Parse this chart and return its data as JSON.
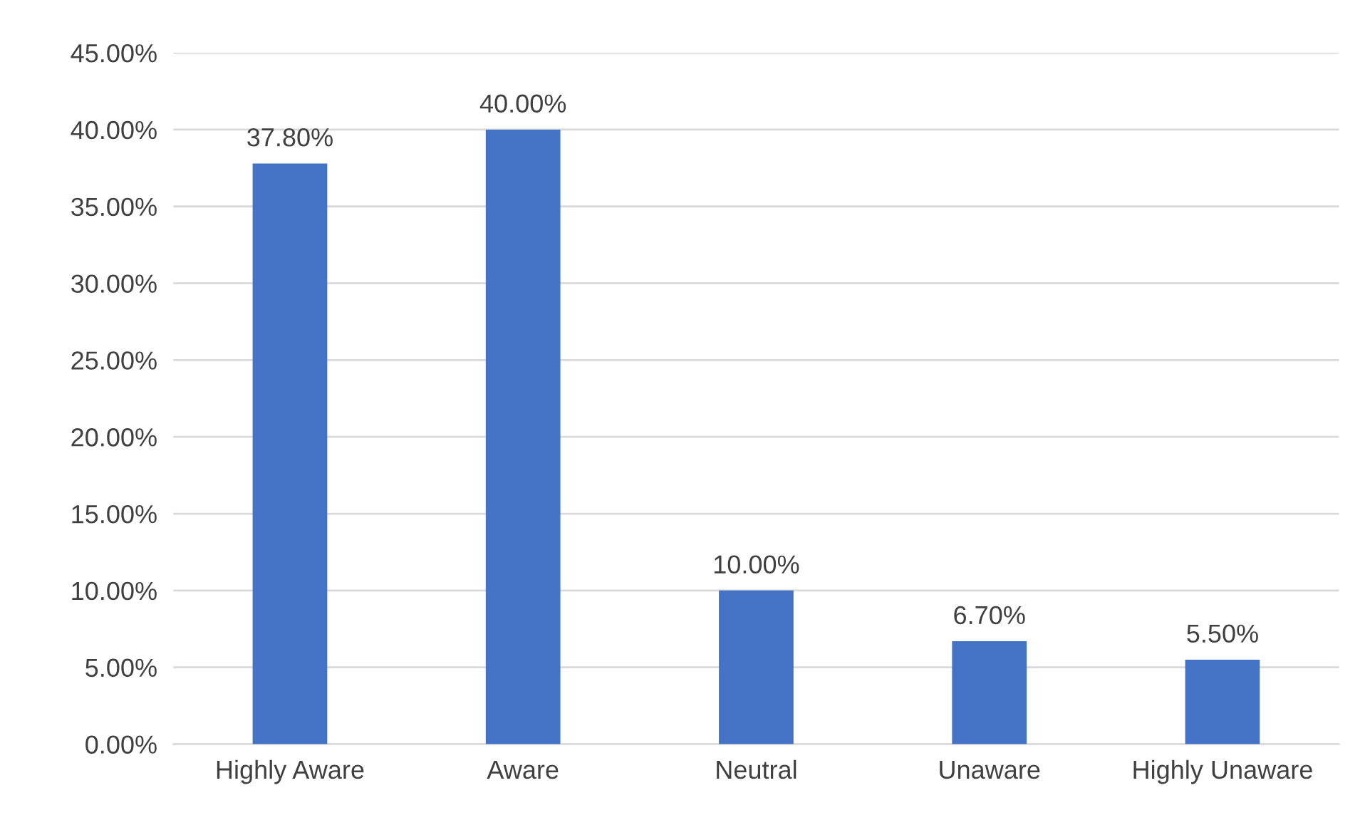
{
  "chart_data": {
    "type": "bar",
    "categories": [
      "Highly Aware",
      "Aware",
      "Neutral",
      "Unaware",
      "Highly Unaware"
    ],
    "values": [
      37.8,
      40.0,
      10.0,
      6.7,
      5.5
    ],
    "color": "#4472c4",
    "value_labels": [
      "37.80%",
      "40.00%",
      "10.00%",
      "6.70%",
      "5.50%"
    ],
    "ylim": [
      0,
      45
    ],
    "yticks": [
      {
        "value": 0,
        "label": "0.00%"
      },
      {
        "value": 5,
        "label": "5.00%"
      },
      {
        "value": 10,
        "label": "10.00%"
      },
      {
        "value": 15,
        "label": "15.00%"
      },
      {
        "value": 20,
        "label": "20.00%"
      },
      {
        "value": 25,
        "label": "25.00%"
      },
      {
        "value": 30,
        "label": "30.00%"
      },
      {
        "value": 35,
        "label": "35.00%"
      },
      {
        "value": 40,
        "label": "40.00%"
      },
      {
        "value": 45,
        "label": "45.00%"
      }
    ],
    "grid": "y"
  }
}
